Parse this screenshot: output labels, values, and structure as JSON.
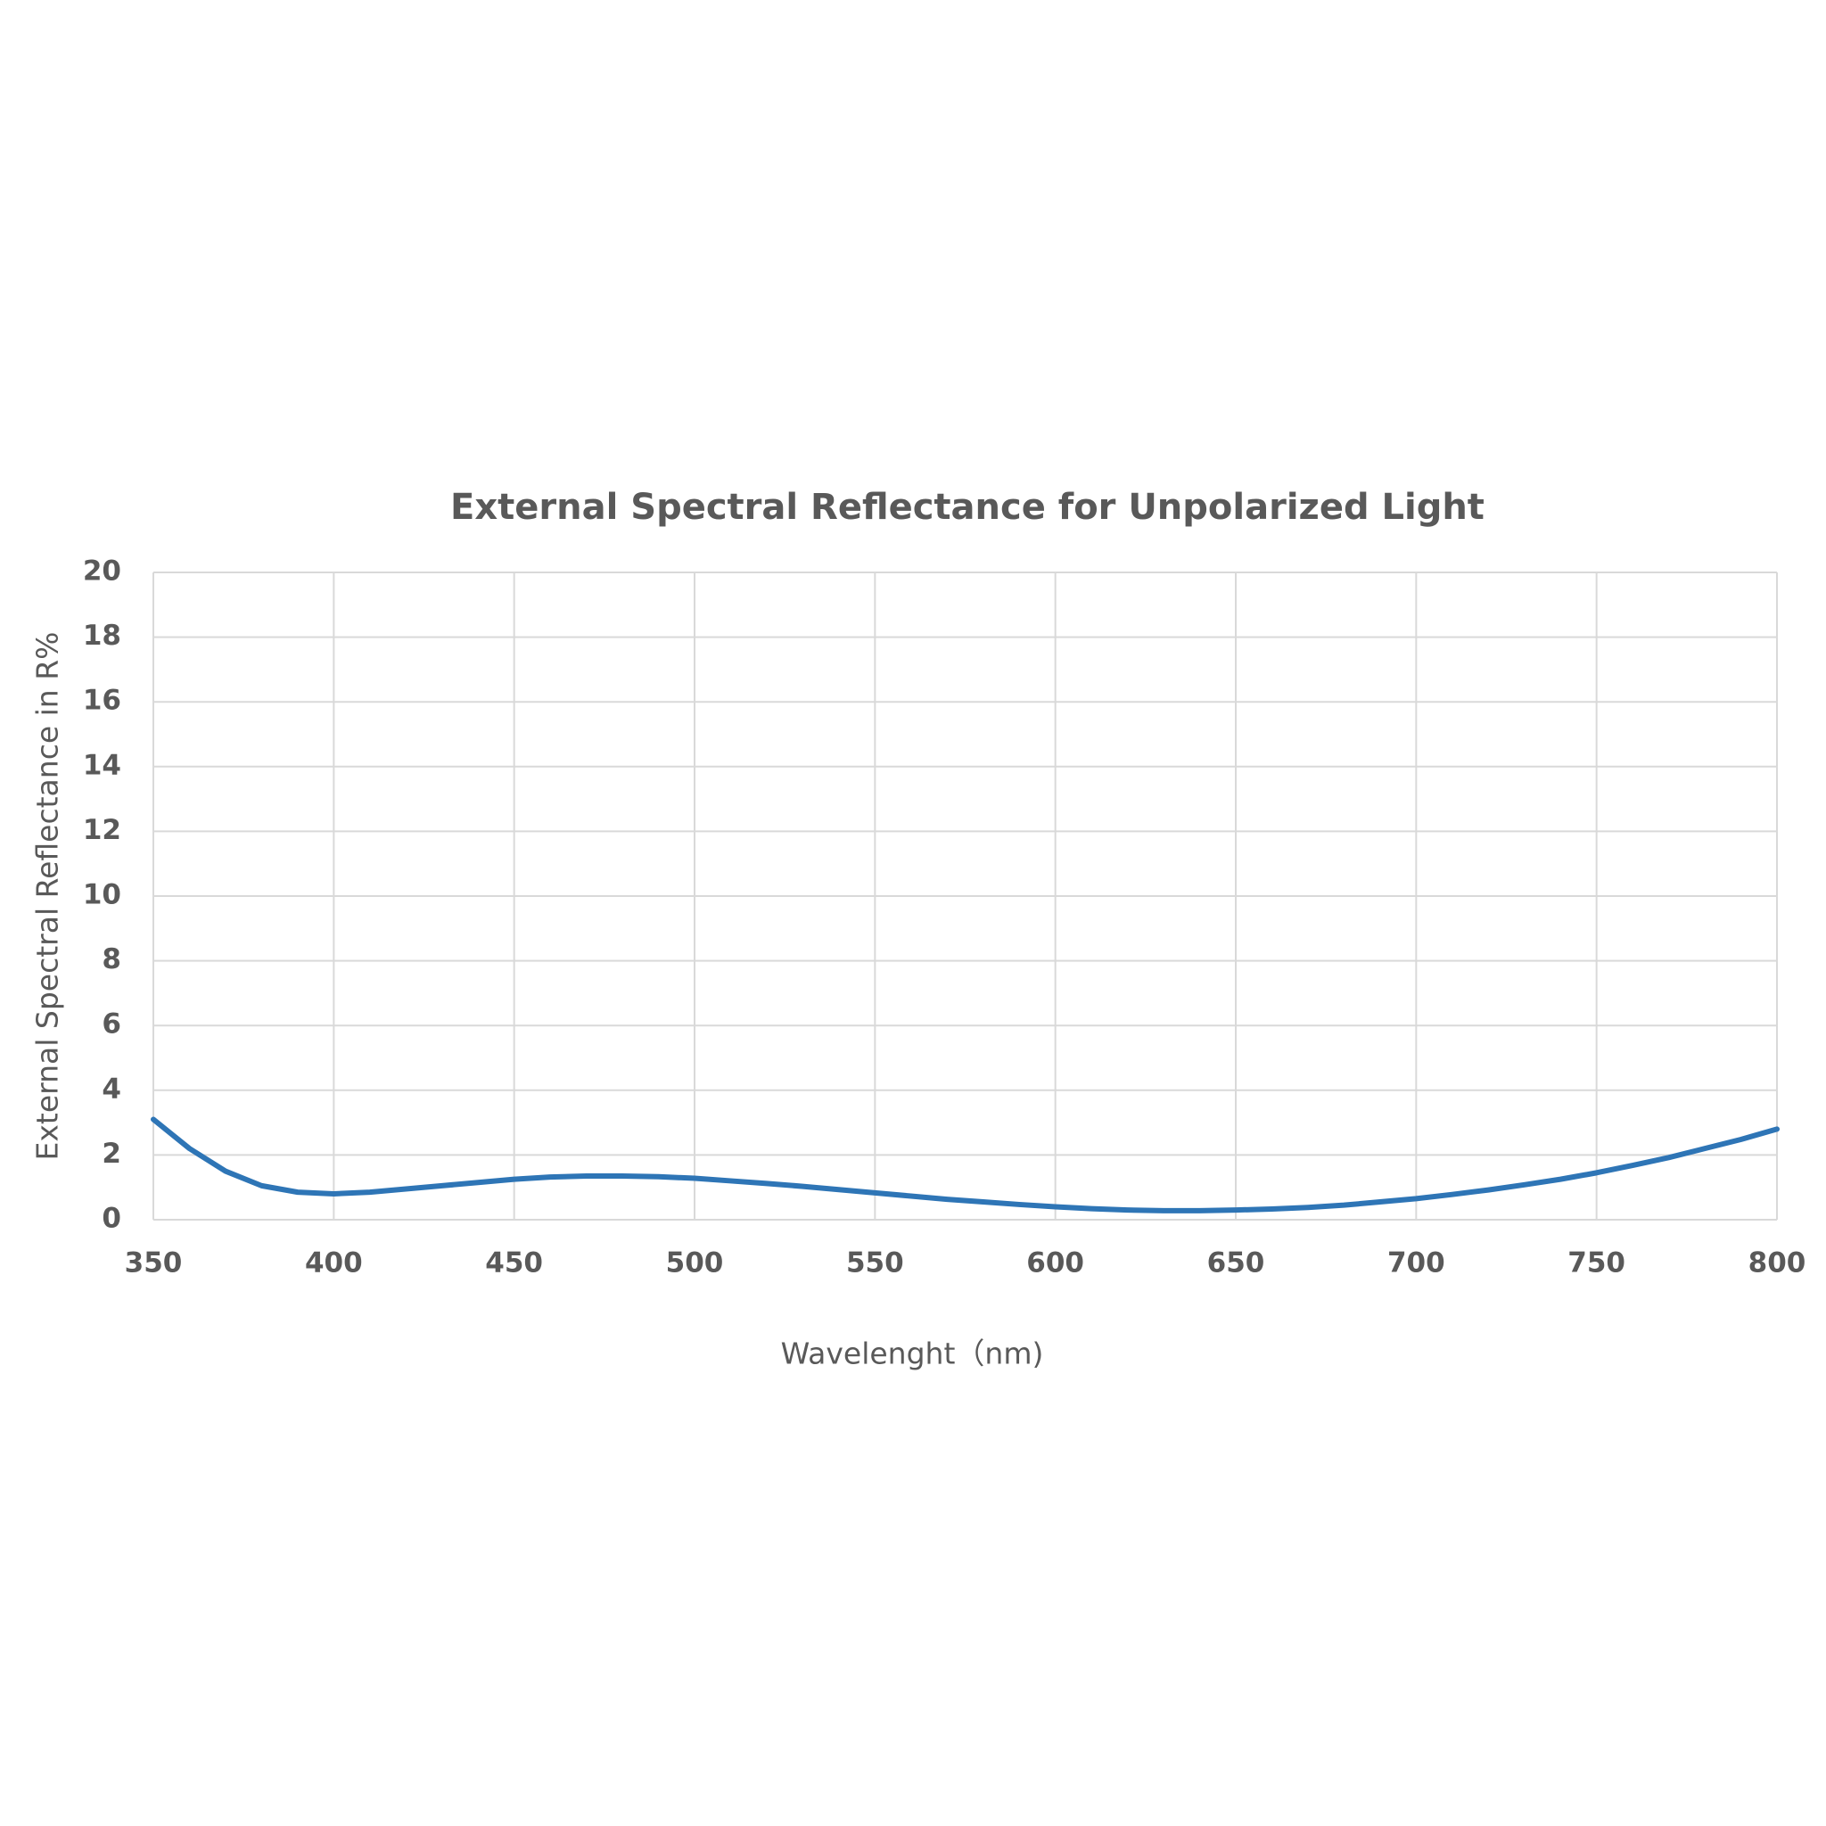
{
  "chart_data": {
    "type": "line",
    "title": "External Spectral Reflectance for Unpolarized Light",
    "x_label": "Wavelenght（nm)",
    "y_label": "External Spectral Reflectance in R%",
    "x": [
      350,
      360,
      370,
      380,
      390,
      400,
      410,
      420,
      430,
      440,
      450,
      460,
      470,
      480,
      490,
      500,
      510,
      520,
      530,
      540,
      550,
      560,
      570,
      580,
      590,
      600,
      610,
      620,
      630,
      640,
      650,
      660,
      670,
      680,
      690,
      700,
      710,
      720,
      730,
      740,
      750,
      760,
      770,
      780,
      790,
      800
    ],
    "values": [
      3.1,
      2.2,
      1.5,
      1.05,
      0.85,
      0.8,
      0.85,
      0.95,
      1.05,
      1.15,
      1.25,
      1.32,
      1.35,
      1.35,
      1.33,
      1.28,
      1.2,
      1.12,
      1.03,
      0.93,
      0.83,
      0.73,
      0.63,
      0.55,
      0.47,
      0.4,
      0.34,
      0.3,
      0.28,
      0.28,
      0.3,
      0.33,
      0.38,
      0.45,
      0.55,
      0.65,
      0.78,
      0.92,
      1.08,
      1.25,
      1.45,
      1.68,
      1.92,
      2.2,
      2.48,
      2.8
    ],
    "color": "#2e75b6",
    "xlim": [
      350,
      800
    ],
    "xticks": [
      350,
      400,
      450,
      500,
      550,
      600,
      650,
      700,
      750,
      800
    ],
    "ylim": [
      0,
      20
    ],
    "yticks": [
      0,
      2,
      4,
      6,
      8,
      10,
      12,
      14,
      16,
      18,
      20
    ],
    "grid": true
  }
}
